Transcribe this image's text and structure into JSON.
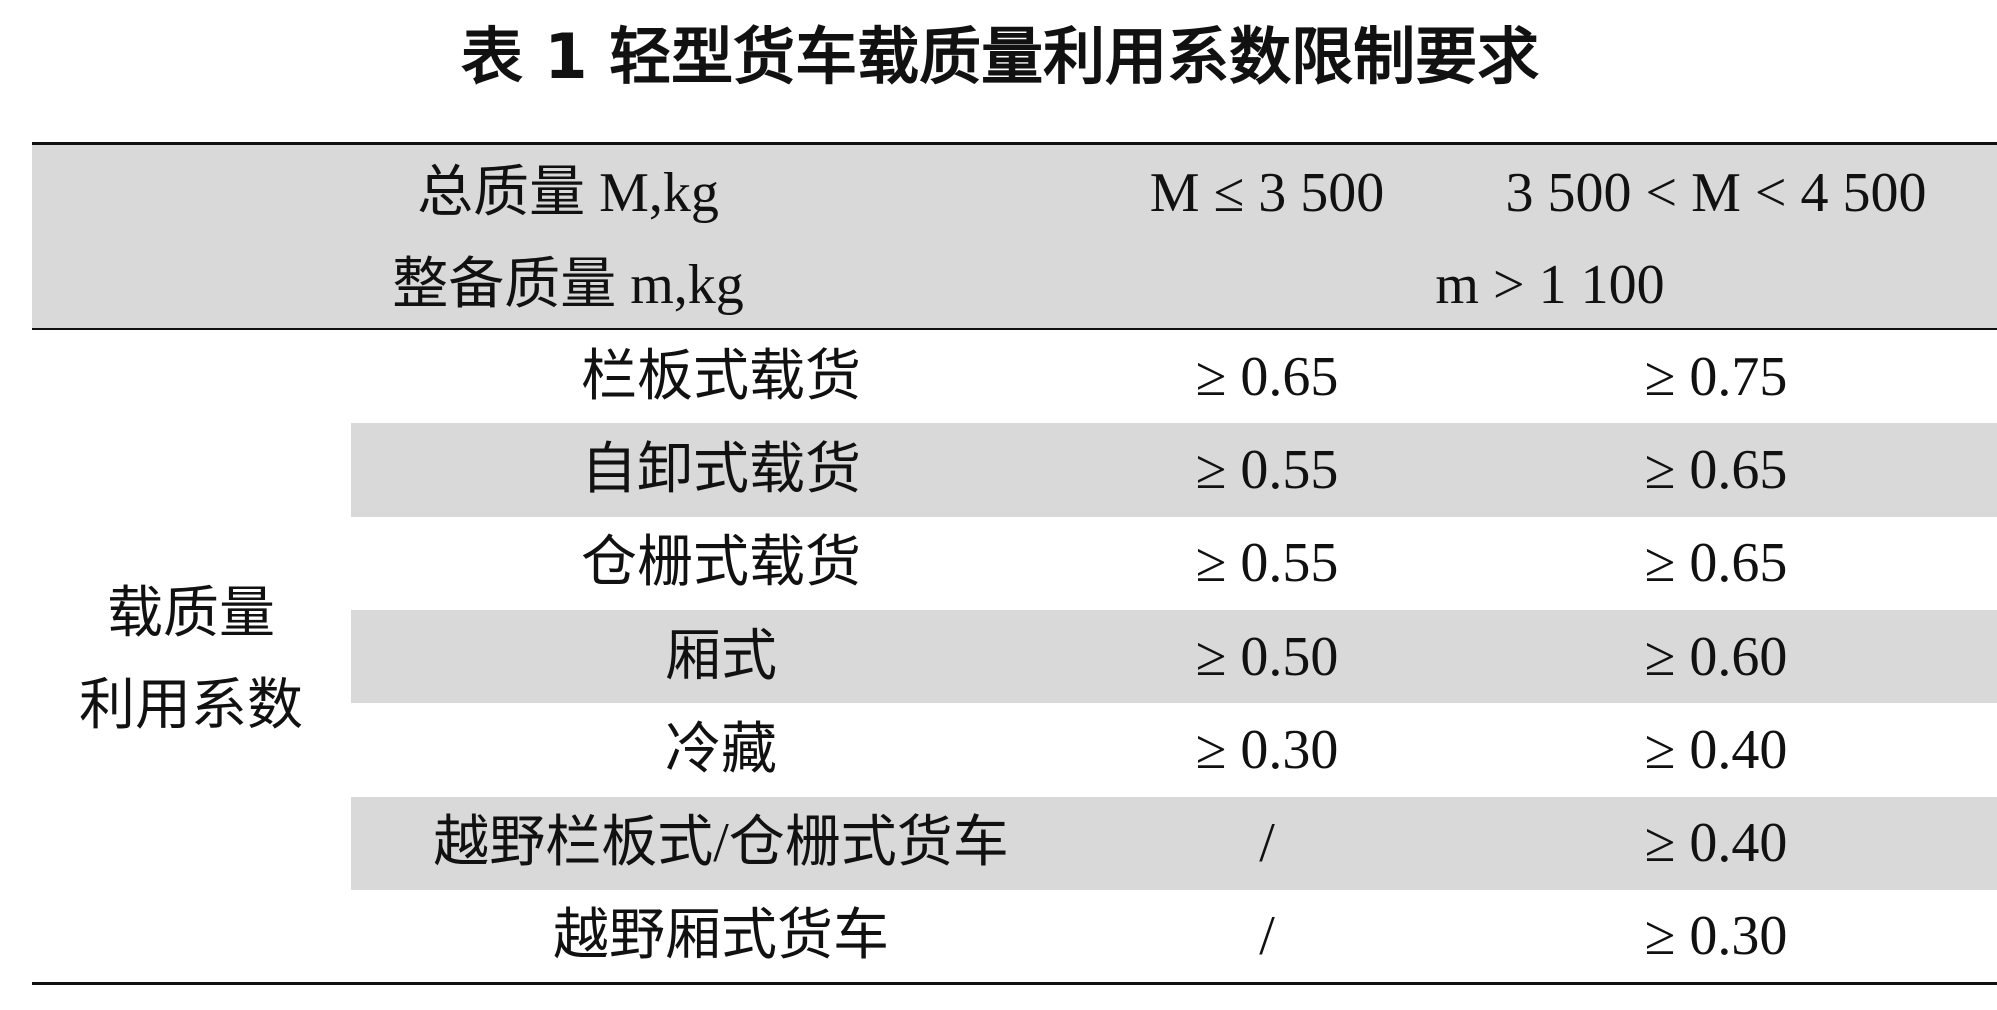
{
  "title": "表 1  轻型货车载质量利用系数限制要求",
  "header": {
    "mass_label": "总质量 M,kg",
    "curb_label": "整备质量 m,kg",
    "col1": "M ≤ 3 500",
    "col2": "3 500 < M < 4 500",
    "curb_value": "m > 1 100"
  },
  "group_label": [
    "载质量",
    "利用系数"
  ],
  "table": {
    "rows": [
      [
        "栏板式载货",
        "≥ 0.65",
        "≥ 0.75"
      ],
      [
        "自卸式载货",
        "≥ 0.55",
        "≥ 0.65"
      ],
      [
        "仓栅式载货",
        "≥ 0.55",
        "≥ 0.65"
      ],
      [
        "厢式",
        "≥ 0.50",
        "≥ 0.60"
      ],
      [
        "冷藏",
        "≥ 0.30",
        "≥ 0.40"
      ],
      [
        "越野栏板式/仓栅式货车",
        "/",
        "≥ 0.40"
      ],
      [
        "越野厢式货车",
        "/",
        "≥ 0.30"
      ]
    ]
  }
}
